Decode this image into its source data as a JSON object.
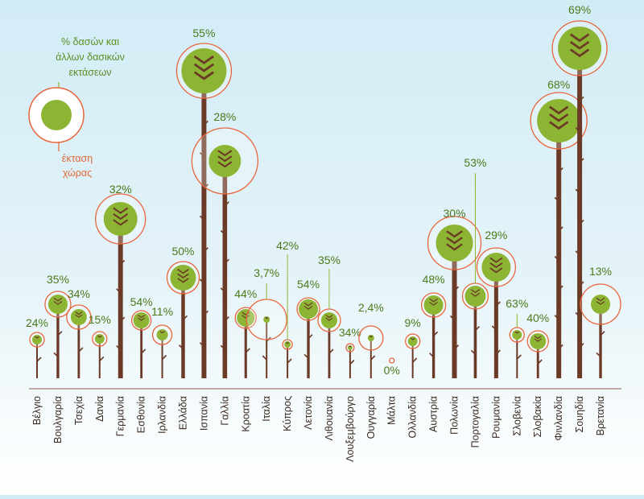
{
  "legend": {
    "forest_label_lines": [
      "% δασών και",
      "άλλων δασικών",
      "εκτάσεων"
    ],
    "area_label_lines": [
      "έκταση",
      "χώρας"
    ]
  },
  "colors": {
    "trunk": "#6b3a26",
    "crown": "#8db534",
    "ring": "#e8663c",
    "label": "#4a7a1a",
    "axis": "#9b7e6e"
  },
  "chart_data": {
    "type": "scatter",
    "categories": [
      "Βέλγιο",
      "Βουλγαρία",
      "Τσεχία",
      "Δανία",
      "Γερμανία",
      "Εσθονία",
      "Ιρλανδία",
      "Ελλάδα",
      "Ισπανία",
      "Γαλλία",
      "Κροατία",
      "Ιταλία",
      "Κύπρος",
      "Λετονία",
      "Λιθουανία",
      "Λουξεμβούργο",
      "Ουγγαρία",
      "Μάλτα",
      "Ολλανδία",
      "Αυστρία",
      "Πολωνία",
      "Πορτογαλία",
      "Ρουμανία",
      "Σλοβενία",
      "Σλοβακία",
      "Φινλανδία",
      "Σουηδία",
      "Βρετανία"
    ],
    "series": [
      {
        "values": [
          "24%",
          "35%",
          "34%",
          "15%",
          "32%",
          "54%",
          "11%",
          "50%",
          "55%",
          "28%",
          "44%",
          "3,7%",
          "42%",
          "54%",
          "35%",
          "34%",
          "2,4%",
          "0%",
          "9%",
          "48%",
          "30%",
          "53%",
          "29%",
          "63%",
          "40%",
          "68%",
          "69%",
          "13%"
        ]
      }
    ]
  }
}
